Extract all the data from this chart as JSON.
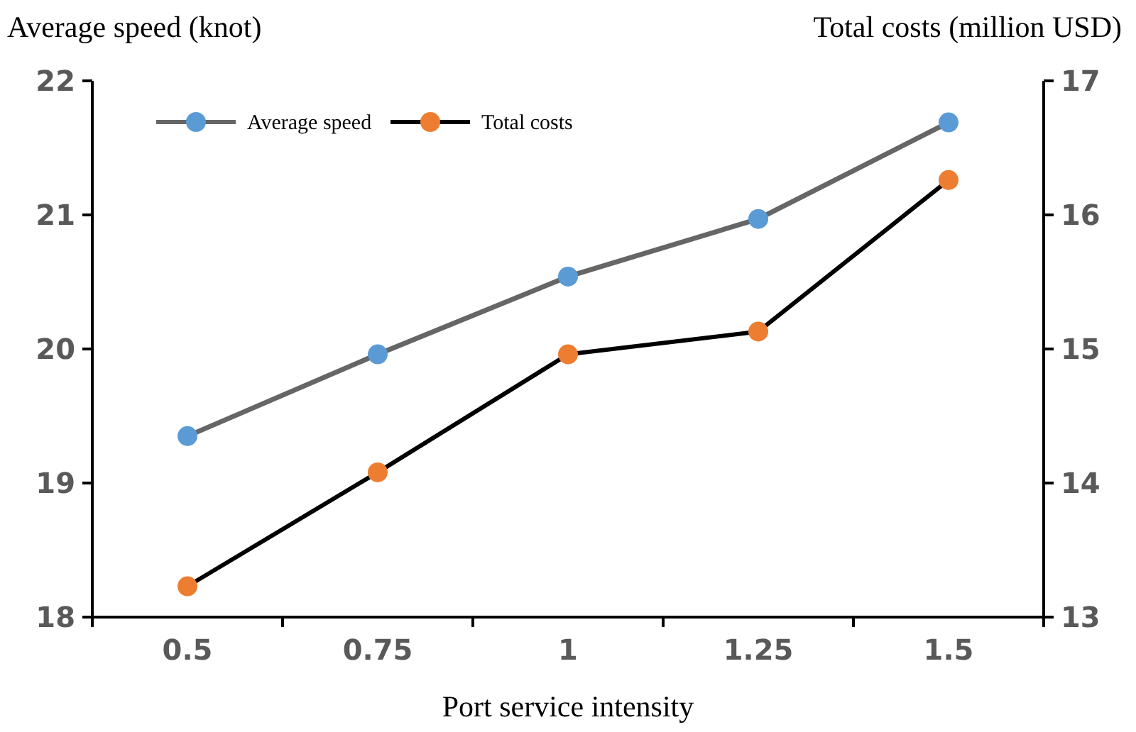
{
  "chart_data": {
    "type": "line",
    "xlabel": "Port service intensity",
    "ylabel": "Average speed (knot)",
    "y2label": "Total costs (million USD)",
    "categories": [
      "0.5",
      "0.75",
      "1",
      "1.25",
      "1.5"
    ],
    "series": [
      {
        "name": "Average speed",
        "color": "#5b9bd5",
        "values": [
          19.35,
          19.96,
          20.54,
          20.97,
          21.69
        ]
      },
      {
        "name": "Total costs",
        "color": "#ed7d31",
        "axis": "y2",
        "values": [
          13.23,
          14.08,
          14.96,
          15.13,
          16.26
        ]
      }
    ],
    "ylim": [
      18,
      22
    ],
    "yticks": [
      18,
      19,
      20,
      21,
      22
    ],
    "y2lim": [
      13,
      17
    ],
    "y2ticks": [
      13,
      14,
      15,
      16,
      17
    ],
    "legend": "top left",
    "marker": "circle",
    "grid": false
  }
}
